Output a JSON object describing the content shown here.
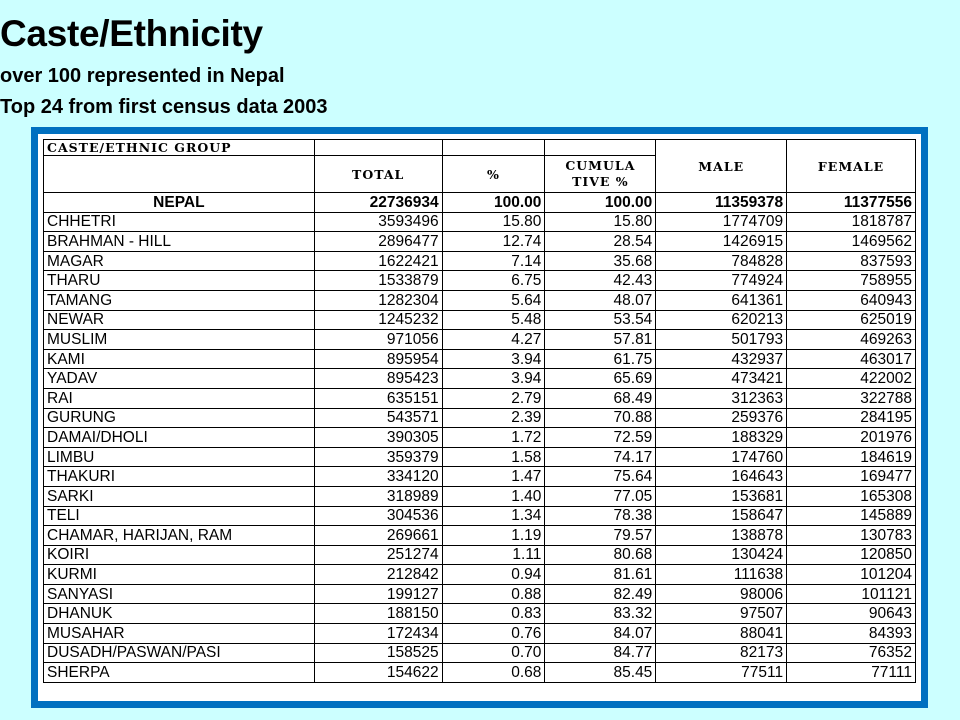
{
  "title": "Caste/Ethnicity",
  "subtitle_1": "over 100 represented in Nepal",
  "subtitle_2": "Top 24 from first census data 2003",
  "colors": {
    "background": "#ccffff",
    "frame": "#0070c0"
  },
  "table": {
    "headers": {
      "group": "CASTE/ETHNIC GROUP",
      "total": "TOTAL",
      "percent": "%",
      "cumulative_line1": "CUMULA",
      "cumulative_line2": "TIVE  %",
      "male": "MALE",
      "female": "FEMALE"
    },
    "rows": [
      [
        "NEPAL",
        "22736934",
        "100.00",
        "100.00",
        "11359378",
        "11377556"
      ],
      [
        "CHHETRI",
        "3593496",
        "15.80",
        "15.80",
        "1774709",
        "1818787"
      ],
      [
        "BRAHMAN - HILL",
        "2896477",
        "12.74",
        "28.54",
        "1426915",
        "1469562"
      ],
      [
        "MAGAR",
        "1622421",
        "7.14",
        "35.68",
        "784828",
        "837593"
      ],
      [
        "THARU",
        "1533879",
        "6.75",
        "42.43",
        "774924",
        "758955"
      ],
      [
        "TAMANG",
        "1282304",
        "5.64",
        "48.07",
        "641361",
        "640943"
      ],
      [
        "NEWAR",
        "1245232",
        "5.48",
        "53.54",
        "620213",
        "625019"
      ],
      [
        "MUSLIM",
        "971056",
        "4.27",
        "57.81",
        "501793",
        "469263"
      ],
      [
        "KAMI",
        "895954",
        "3.94",
        "61.75",
        "432937",
        "463017"
      ],
      [
        "YADAV",
        "895423",
        "3.94",
        "65.69",
        "473421",
        "422002"
      ],
      [
        "RAI",
        "635151",
        "2.79",
        "68.49",
        "312363",
        "322788"
      ],
      [
        "GURUNG",
        "543571",
        "2.39",
        "70.88",
        "259376",
        "284195"
      ],
      [
        "DAMAI/DHOLI",
        "390305",
        "1.72",
        "72.59",
        "188329",
        "201976"
      ],
      [
        "LIMBU",
        "359379",
        "1.58",
        "74.17",
        "174760",
        "184619"
      ],
      [
        "THAKURI",
        "334120",
        "1.47",
        "75.64",
        "164643",
        "169477"
      ],
      [
        "SARKI",
        "318989",
        "1.40",
        "77.05",
        "153681",
        "165308"
      ],
      [
        "TELI",
        "304536",
        "1.34",
        "78.38",
        "158647",
        "145889"
      ],
      [
        "CHAMAR, HARIJAN, RAM",
        "269661",
        "1.19",
        "79.57",
        "138878",
        "130783"
      ],
      [
        "KOIRI",
        "251274",
        "1.11",
        "80.68",
        "130424",
        "120850"
      ],
      [
        "KURMI",
        "212842",
        "0.94",
        "81.61",
        "111638",
        "101204"
      ],
      [
        "SANYASI",
        "199127",
        "0.88",
        "82.49",
        "98006",
        "101121"
      ],
      [
        "DHANUK",
        "188150",
        "0.83",
        "83.32",
        "97507",
        "90643"
      ],
      [
        "MUSAHAR",
        "172434",
        "0.76",
        "84.07",
        "88041",
        "84393"
      ],
      [
        "DUSADH/PASWAN/PASI",
        "158525",
        "0.70",
        "84.77",
        "82173",
        "76352"
      ],
      [
        "SHERPA",
        "154622",
        "0.68",
        "85.45",
        "77511",
        "77111"
      ]
    ]
  }
}
